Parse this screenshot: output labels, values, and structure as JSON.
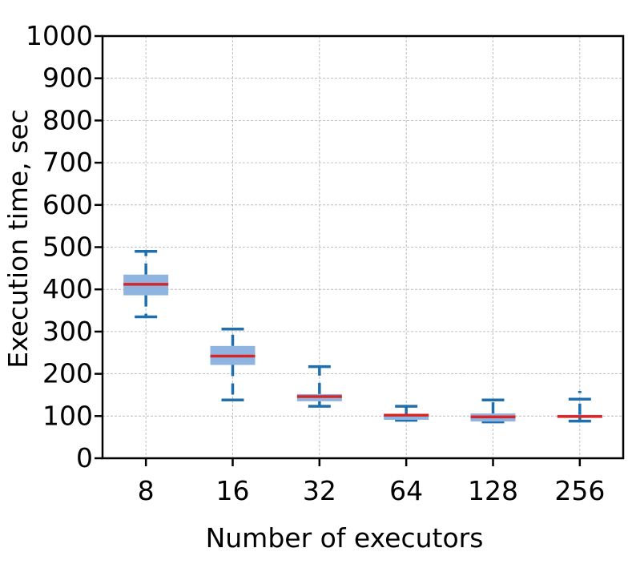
{
  "chart_data": {
    "type": "box",
    "title": "",
    "xlabel": "Number of executors",
    "ylabel": "Execution time, sec",
    "categories": [
      "8",
      "16",
      "32",
      "64",
      "128",
      "256"
    ],
    "ylim": [
      0,
      1000
    ],
    "yticks": [
      0,
      100,
      200,
      300,
      400,
      500,
      600,
      700,
      800,
      900,
      1000
    ],
    "grid": true,
    "boxes": [
      {
        "category": "8",
        "whisker_low": 335,
        "q1": 386,
        "median": 412,
        "q3": 435,
        "whisker_high": 490
      },
      {
        "category": "16",
        "whisker_low": 138,
        "q1": 221,
        "median": 242,
        "q3": 266,
        "whisker_high": 306
      },
      {
        "category": "32",
        "whisker_low": 123,
        "q1": 135,
        "median": 146,
        "q3": 152,
        "whisker_high": 217
      },
      {
        "category": "64",
        "whisker_low": 90,
        "q1": 91,
        "median": 102,
        "q3": 104,
        "whisker_high": 123
      },
      {
        "category": "128",
        "whisker_low": 86,
        "q1": 87,
        "median": 98,
        "q3": 106,
        "whisker_high": 138
      },
      {
        "category": "256",
        "whisker_low": 88,
        "q1": 96,
        "median": 99,
        "q3": 103,
        "whisker_high": 140,
        "outliers": [
          157
        ]
      }
    ],
    "colors": {
      "box_fill": "#8fb4e0",
      "whisker": "#1f6fae",
      "median": "#d62728",
      "grid": "#b0b0b0",
      "axis": "#000000"
    }
  }
}
